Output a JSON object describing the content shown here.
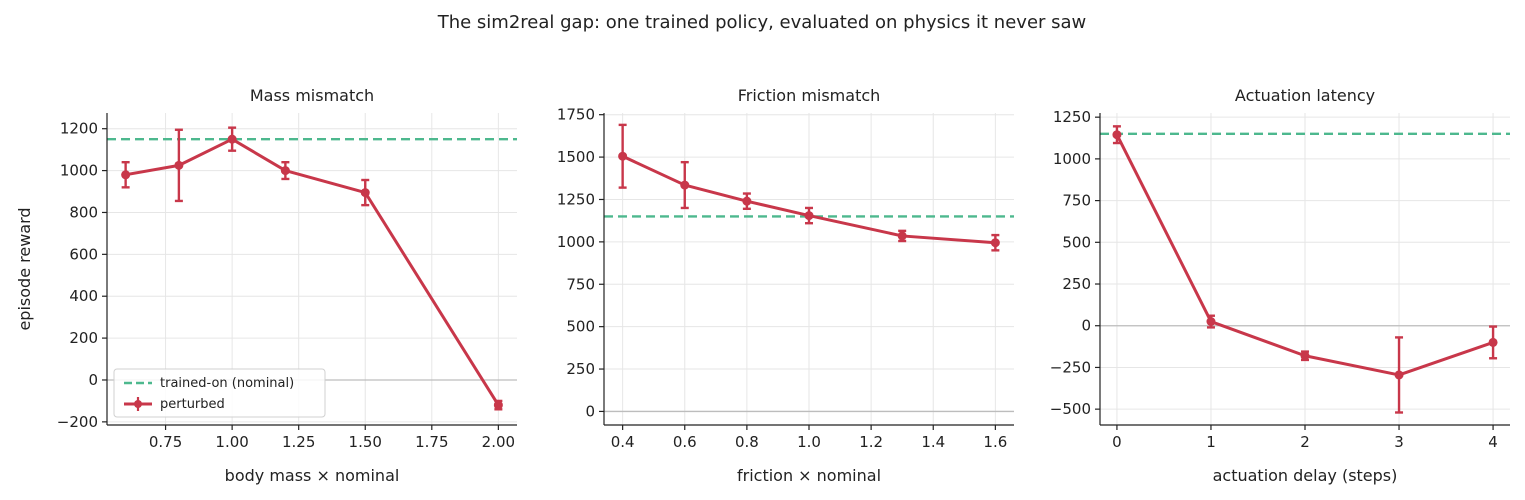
{
  "figure": {
    "suptitle": "The sim2real gap: one trained policy, evaluated on physics it never saw"
  },
  "colors": {
    "nominal": "#4db88e",
    "perturbed": "#c8374a"
  },
  "legend": {
    "nominal_label": "trained-on (nominal)",
    "perturbed_label": "perturbed",
    "placement": "lower-left of first panel"
  },
  "chart_data": [
    {
      "type": "line",
      "title": "Mass mismatch",
      "xlabel": "body mass × nominal",
      "ylabel": "episode reward",
      "xlim": [
        0.53,
        2.07
      ],
      "ylim": [
        -215,
        1275
      ],
      "xticks": [
        0.75,
        1.0,
        1.25,
        1.5,
        1.75,
        2.0
      ],
      "xtick_labels": [
        "0.75",
        "1.00",
        "1.25",
        "1.50",
        "1.75",
        "2.00"
      ],
      "yticks": [
        -200,
        0,
        200,
        400,
        600,
        800,
        1000,
        1200
      ],
      "ytick_labels": [
        "−200",
        "0",
        "200",
        "400",
        "600",
        "800",
        "1000",
        "1200"
      ],
      "nominal": 1150,
      "grid": true,
      "show_legend": true,
      "series": [
        {
          "name": "perturbed",
          "x": [
            0.6,
            0.8,
            1.0,
            1.2,
            1.5,
            2.0
          ],
          "y": [
            980,
            1025,
            1150,
            1000,
            895,
            -120
          ],
          "err": [
            60,
            170,
            55,
            40,
            60,
            20
          ]
        }
      ]
    },
    {
      "type": "line",
      "title": "Friction mismatch",
      "xlabel": "friction × nominal",
      "ylabel": "",
      "xlim": [
        0.34,
        1.66
      ],
      "ylim": [
        -80,
        1760
      ],
      "xticks": [
        0.4,
        0.6,
        0.8,
        1.0,
        1.2,
        1.4,
        1.6
      ],
      "xtick_labels": [
        "0.4",
        "0.6",
        "0.8",
        "1.0",
        "1.2",
        "1.4",
        "1.6"
      ],
      "yticks": [
        0,
        250,
        500,
        750,
        1000,
        1250,
        1500,
        1750
      ],
      "ytick_labels": [
        "0",
        "250",
        "500",
        "750",
        "1000",
        "1250",
        "1500",
        "1750"
      ],
      "nominal": 1150,
      "grid": true,
      "show_legend": false,
      "series": [
        {
          "name": "perturbed",
          "x": [
            0.4,
            0.6,
            0.8,
            1.0,
            1.3,
            1.6
          ],
          "y": [
            1505,
            1335,
            1240,
            1155,
            1035,
            995
          ],
          "err": [
            185,
            135,
            45,
            45,
            30,
            45
          ]
        }
      ]
    },
    {
      "type": "line",
      "title": "Actuation latency",
      "xlabel": "actuation delay (steps)",
      "ylabel": "",
      "xlim": [
        -0.18,
        4.18
      ],
      "ylim": [
        -595,
        1275
      ],
      "xticks": [
        0,
        1,
        2,
        3,
        4
      ],
      "xtick_labels": [
        "0",
        "1",
        "2",
        "3",
        "4"
      ],
      "yticks": [
        -500,
        -250,
        0,
        250,
        500,
        750,
        1000,
        1250
      ],
      "ytick_labels": [
        "−500",
        "−250",
        "0",
        "250",
        "500",
        "750",
        "1000",
        "1250"
      ],
      "nominal": 1150,
      "grid": true,
      "show_legend": false,
      "series": [
        {
          "name": "perturbed",
          "x": [
            0,
            1,
            2,
            3,
            4
          ],
          "y": [
            1145,
            25,
            -180,
            -295,
            -100
          ],
          "err": [
            50,
            35,
            25,
            225,
            95
          ]
        }
      ]
    }
  ]
}
